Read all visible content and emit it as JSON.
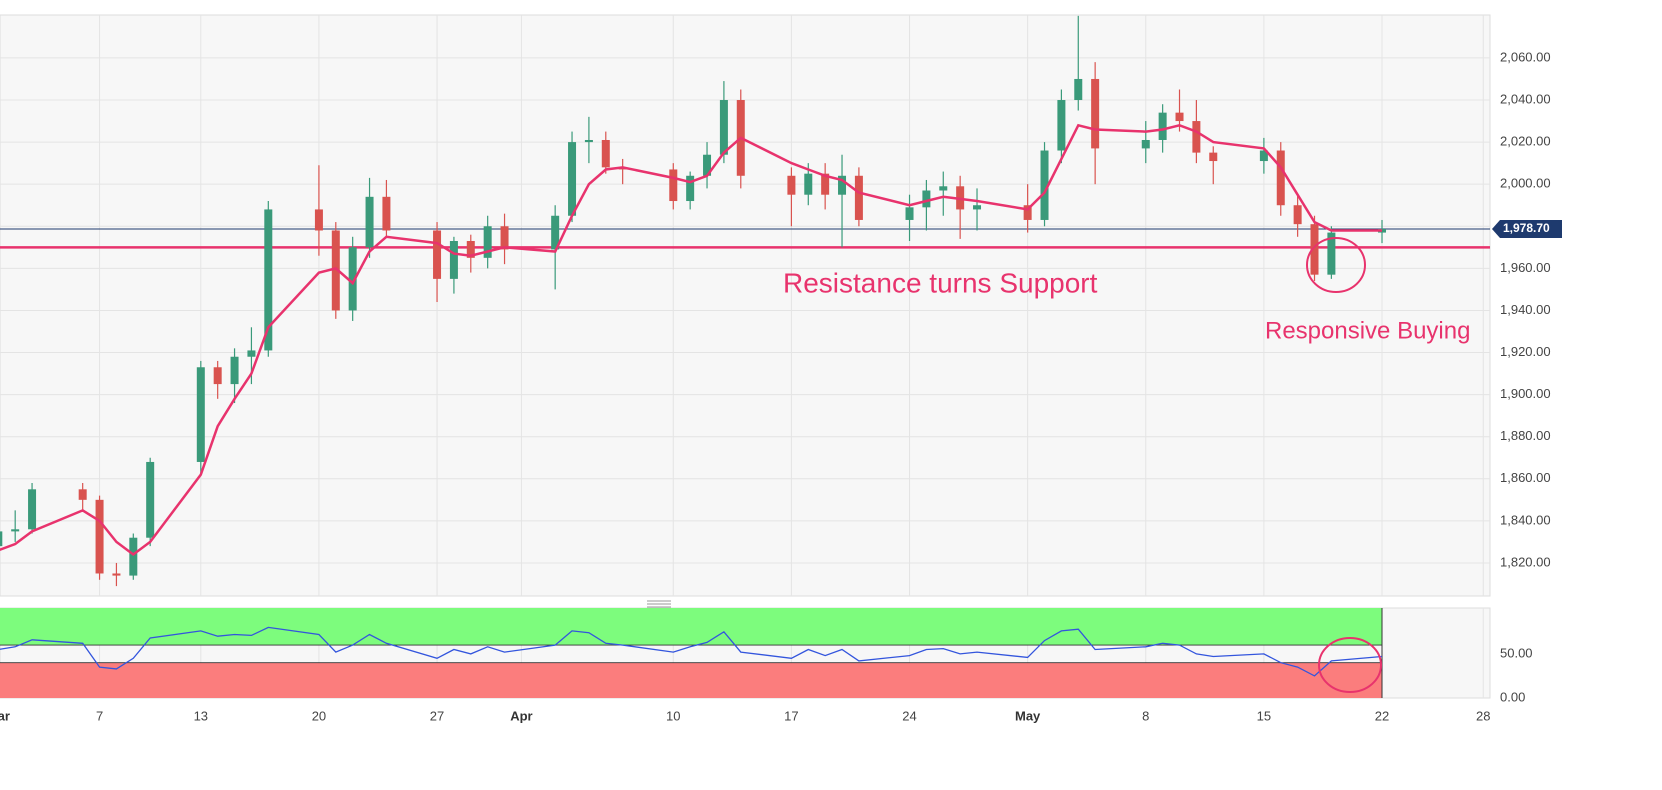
{
  "chart_data": {
    "type": "candlestick",
    "x": [
      1,
      2,
      3,
      6,
      7,
      8,
      9,
      10,
      13,
      14,
      15,
      16,
      17,
      20,
      21,
      22,
      23,
      24,
      27,
      28,
      29,
      30,
      31,
      34,
      35,
      36,
      37,
      38,
      41,
      42,
      43,
      44,
      45,
      48,
      49,
      50,
      51,
      52,
      55,
      56,
      57,
      58,
      59,
      62,
      63,
      64,
      65,
      66,
      69,
      70,
      71,
      72,
      73,
      76,
      77,
      78,
      79,
      80,
      83
    ],
    "open": [
      1828,
      1835,
      1836,
      1855,
      1850,
      1815,
      1814,
      1832,
      1868,
      1913,
      1905,
      1918,
      1921,
      1988,
      1978,
      1940,
      1970,
      1994,
      1978,
      1955,
      1973,
      1965,
      1980,
      1969,
      1985,
      2020,
      2021,
      2008,
      2007,
      1992,
      2004,
      2014,
      2040,
      2004,
      1995,
      2005,
      1995,
      2004,
      1983,
      1989,
      1997,
      1999,
      1988,
      1990,
      1983,
      2016,
      2040,
      2050,
      2017,
      2021,
      2034,
      2030,
      2015,
      2011,
      2016,
      1990,
      1981,
      1957,
      1977
    ],
    "high": [
      1840,
      1845,
      1858,
      1858,
      1852,
      1820,
      1834,
      1870,
      1916,
      1916,
      1922,
      1932,
      1992,
      2009,
      1982,
      1975,
      2003,
      2002,
      1982,
      1975,
      1976,
      1985,
      1986,
      1990,
      2025,
      2032,
      2025,
      2012,
      2010,
      2006,
      2020,
      2049,
      2045,
      2008,
      2010,
      2010,
      2014,
      2008,
      1995,
      2002,
      2006,
      2004,
      1998,
      2000,
      2020,
      2045,
      2080,
      2058,
      2030,
      2038,
      2045,
      2040,
      2018,
      2022,
      2020,
      1995,
      1985,
      1980,
      1983
    ],
    "low": [
      1824,
      1830,
      1834,
      1845,
      1812,
      1809,
      1812,
      1828,
      1862,
      1898,
      1896,
      1905,
      1918,
      1966,
      1936,
      1935,
      1965,
      1975,
      1944,
      1948,
      1958,
      1960,
      1962,
      1950,
      1982,
      2010,
      2005,
      2000,
      1988,
      1988,
      1998,
      2010,
      1998,
      1980,
      1990,
      1988,
      1970,
      1980,
      1973,
      1978,
      1985,
      1974,
      1978,
      1977,
      1980,
      2010,
      2035,
      2000,
      2010,
      2015,
      2025,
      2010,
      2000,
      2005,
      1985,
      1975,
      1954,
      1955,
      1972
    ],
    "close": [
      1835,
      1836,
      1855,
      1850,
      1815,
      1814,
      1832,
      1868,
      1913,
      1905,
      1918,
      1921,
      1988,
      1978,
      1940,
      1970,
      1994,
      1978,
      1955,
      1973,
      1965,
      1980,
      1969,
      1985,
      2020,
      2021,
      2008,
      2007,
      1992,
      2004,
      2014,
      2040,
      2004,
      1995,
      2005,
      1995,
      2004,
      1983,
      1989,
      1997,
      1999,
      1988,
      1990,
      1983,
      2016,
      2040,
      2050,
      2017,
      2021,
      2034,
      2030,
      2015,
      2011,
      2016,
      1990,
      1981,
      1957,
      1977,
      1978.7
    ],
    "ma": [
      1826,
      1829,
      1835,
      1845,
      1840,
      1830,
      1824,
      1830,
      1862,
      1885,
      1898,
      1910,
      1932,
      1958,
      1960,
      1953,
      1968,
      1975,
      1972,
      1967,
      1966,
      1968,
      1970,
      1968,
      1985,
      2000,
      2007,
      2008,
      2003,
      2001,
      2004,
      2015,
      2022,
      2010,
      2007,
      2004,
      2002,
      1996,
      1990,
      1992,
      1994,
      1993,
      1992,
      1988,
      1996,
      2012,
      2028,
      2026,
      2025,
      2026,
      2028,
      2025,
      2020,
      2017,
      2008,
      1995,
      1982,
      1978,
      1978
    ],
    "rsi": [
      55,
      58,
      66,
      62,
      35,
      33,
      45,
      68,
      76,
      70,
      72,
      71,
      80,
      72,
      52,
      60,
      72,
      62,
      45,
      55,
      50,
      58,
      52,
      60,
      76,
      74,
      62,
      60,
      52,
      58,
      63,
      75,
      52,
      45,
      55,
      48,
      55,
      42,
      48,
      55,
      56,
      50,
      52,
      46,
      65,
      76,
      78,
      55,
      58,
      62,
      60,
      50,
      47,
      50,
      40,
      35,
      25,
      42,
      47
    ],
    "up_color": "#3a9a7a",
    "down_color": "#d9534f",
    "ma_color": "#e8336d",
    "rsi_color": "#3355dd",
    "xlim": [
      1.1,
      89.4
    ],
    "xticks": [
      {
        "value": 1,
        "label": "Mar"
      },
      7,
      13,
      20,
      27,
      {
        "value": 32,
        "label": "Apr"
      },
      {
        "value": 41,
        "label": "10"
      },
      {
        "value": 48,
        "label": "17"
      },
      {
        "value": 55,
        "label": "24"
      },
      {
        "value": 62,
        "label": "May"
      },
      {
        "value": 69,
        "label": "8"
      },
      {
        "value": 76,
        "label": "15"
      },
      {
        "value": 83,
        "label": "22"
      },
      {
        "value": 89,
        "label": "28"
      }
    ],
    "ylim": [
      1804.3,
      2080.4
    ],
    "yticks": [
      {
        "value": 1820,
        "label": "1,820.00"
      },
      {
        "value": 1840,
        "label": "1,840.00"
      },
      {
        "value": 1860,
        "label": "1,860.00"
      },
      {
        "value": 1880,
        "label": "1,880.00"
      },
      {
        "value": 1900,
        "label": "1,900.00"
      },
      {
        "value": 1920,
        "label": "1,920.00"
      },
      {
        "value": 1940,
        "label": "1,940.00"
      },
      {
        "value": 1960,
        "label": "1,960.00"
      },
      {
        "value": 1980,
        "label": "1,980.00"
      },
      {
        "value": 2000,
        "label": "2,000.00"
      },
      {
        "value": 2020,
        "label": "2,020.00"
      },
      {
        "value": 2040,
        "label": "2,040.00"
      },
      {
        "value": 2060,
        "label": "2,060.00"
      }
    ],
    "y2lim": [
      0,
      102
    ],
    "y2ticks": [
      {
        "value": 0,
        "label": "0.00"
      },
      {
        "value": 50,
        "label": "50.00"
      }
    ],
    "rsi_upper": 60,
    "rsi_lower": 40,
    "support_level": 1970,
    "last_price": {
      "value": 1978.7,
      "label": "1,978.70"
    },
    "grid": true,
    "annotations": [
      "Resistance turns Support",
      "Responsive Buying"
    ]
  }
}
